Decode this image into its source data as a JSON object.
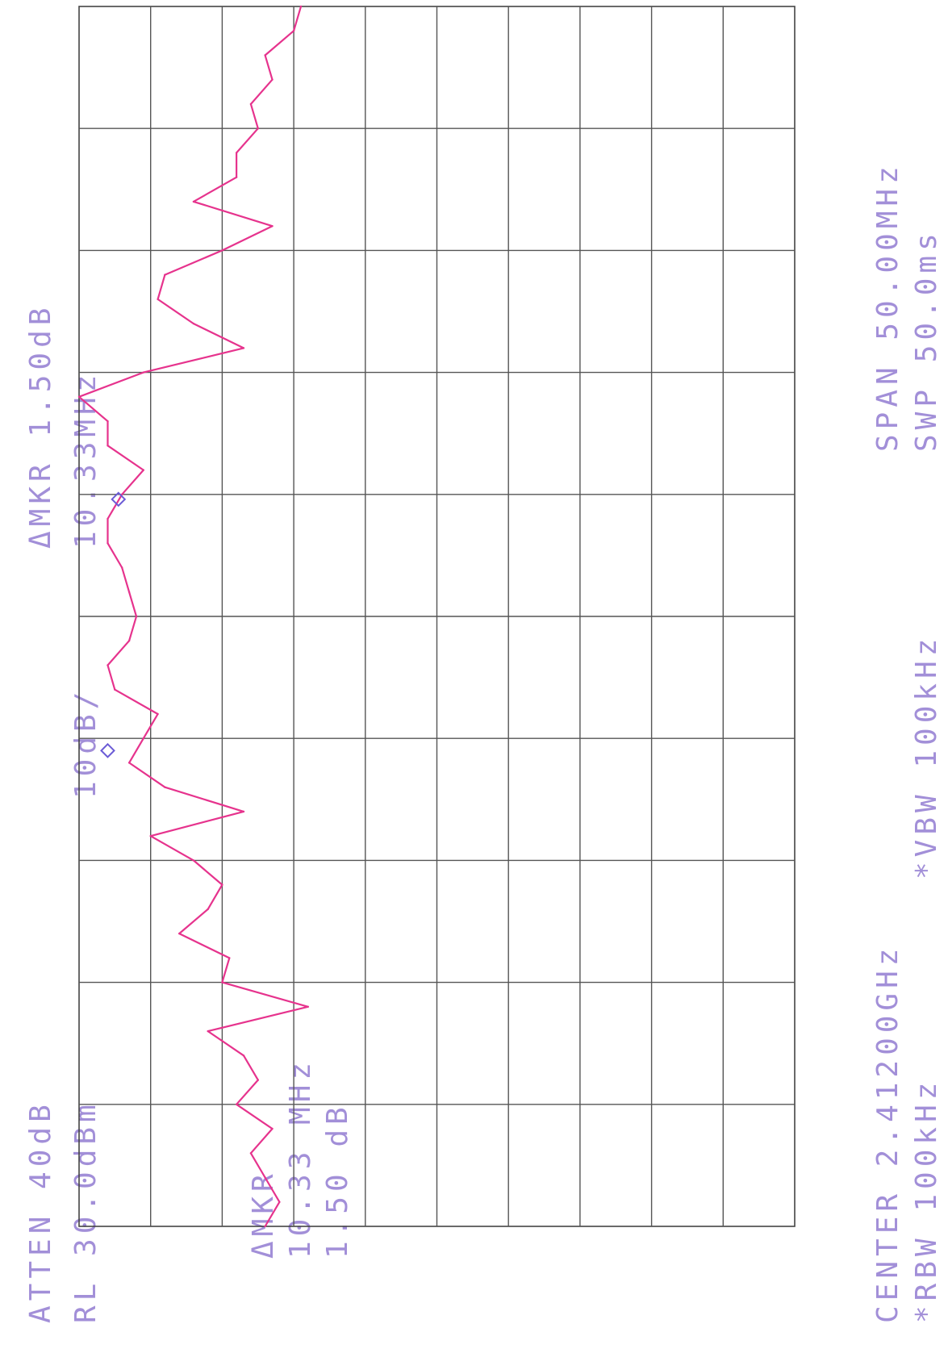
{
  "header_left": {
    "atten": "ATTEN 40dB",
    "ref_level": "RL 30.0dBm"
  },
  "header_mid": {
    "scale": "10dB/"
  },
  "header_right": {
    "delta_marker": "ΔMKR 1.50dB",
    "delta_freq": "10.33MHz"
  },
  "marker_readout": {
    "line1": "ΔMKR",
    "line2": "10.33 MHz",
    "line3": "1.50 dB"
  },
  "footer": {
    "center": "CENTER 2.41200GHz",
    "span": "SPAN 50.00MHz",
    "rbw": "*RBW 100kHz",
    "vbw": "*VBW 100kHz",
    "sweep": "SWP 50.0ms"
  },
  "colors": {
    "trace": "#e6338d",
    "annotation": "#a28fd8",
    "grid": "#555555",
    "marker": "#6b5bd6"
  },
  "chart_data": {
    "type": "line",
    "title": "",
    "xlabel": "",
    "ylabel": "",
    "orientation": "rotated-90-ccw",
    "x_unit": "MHz",
    "y_unit": "dBm",
    "xlim": [
      2387.0,
      2437.0
    ],
    "ylim": [
      -70.0,
      30.0
    ],
    "grid": true,
    "x_divisions": 10,
    "y_divisions": 10,
    "series": [
      {
        "x": [
          2387,
          2388,
          2389,
          2390,
          2391,
          2392,
          2393,
          2394,
          2395,
          2396,
          2397,
          2398,
          2399,
          2400,
          2401,
          2402,
          2403,
          2404,
          2405,
          2406,
          2407,
          2408,
          2409,
          2410,
          2411,
          2412,
          2413,
          2414,
          2415,
          2416,
          2417,
          2418,
          2419,
          2420,
          2421,
          2422,
          2423,
          2424,
          2425,
          2426,
          2427,
          2428,
          2429,
          2430,
          2431,
          2432,
          2433,
          2434,
          2435,
          2436,
          2437
        ],
        "y": [
          -44,
          -42,
          -44,
          -46,
          -43,
          -48,
          -45,
          -47,
          -52,
          -38,
          -50,
          -49,
          -56,
          -52,
          -50,
          -54,
          -60,
          -47,
          -58,
          -63,
          -61,
          -59,
          -65,
          -66,
          -63,
          -62,
          -63,
          -64,
          -66,
          -66,
          -64,
          -61,
          -66,
          -66,
          -70,
          -61,
          -47,
          -54,
          -59,
          -58,
          -50,
          -43,
          -54,
          -48,
          -48,
          -45,
          -46,
          -43,
          -44,
          -40,
          -39
        ]
      }
    ],
    "markers": [
      {
        "name": "reference",
        "x": 2406.5,
        "y": -66.0
      },
      {
        "name": "delta",
        "x": 2416.8,
        "y": -64.5
      }
    ]
  }
}
